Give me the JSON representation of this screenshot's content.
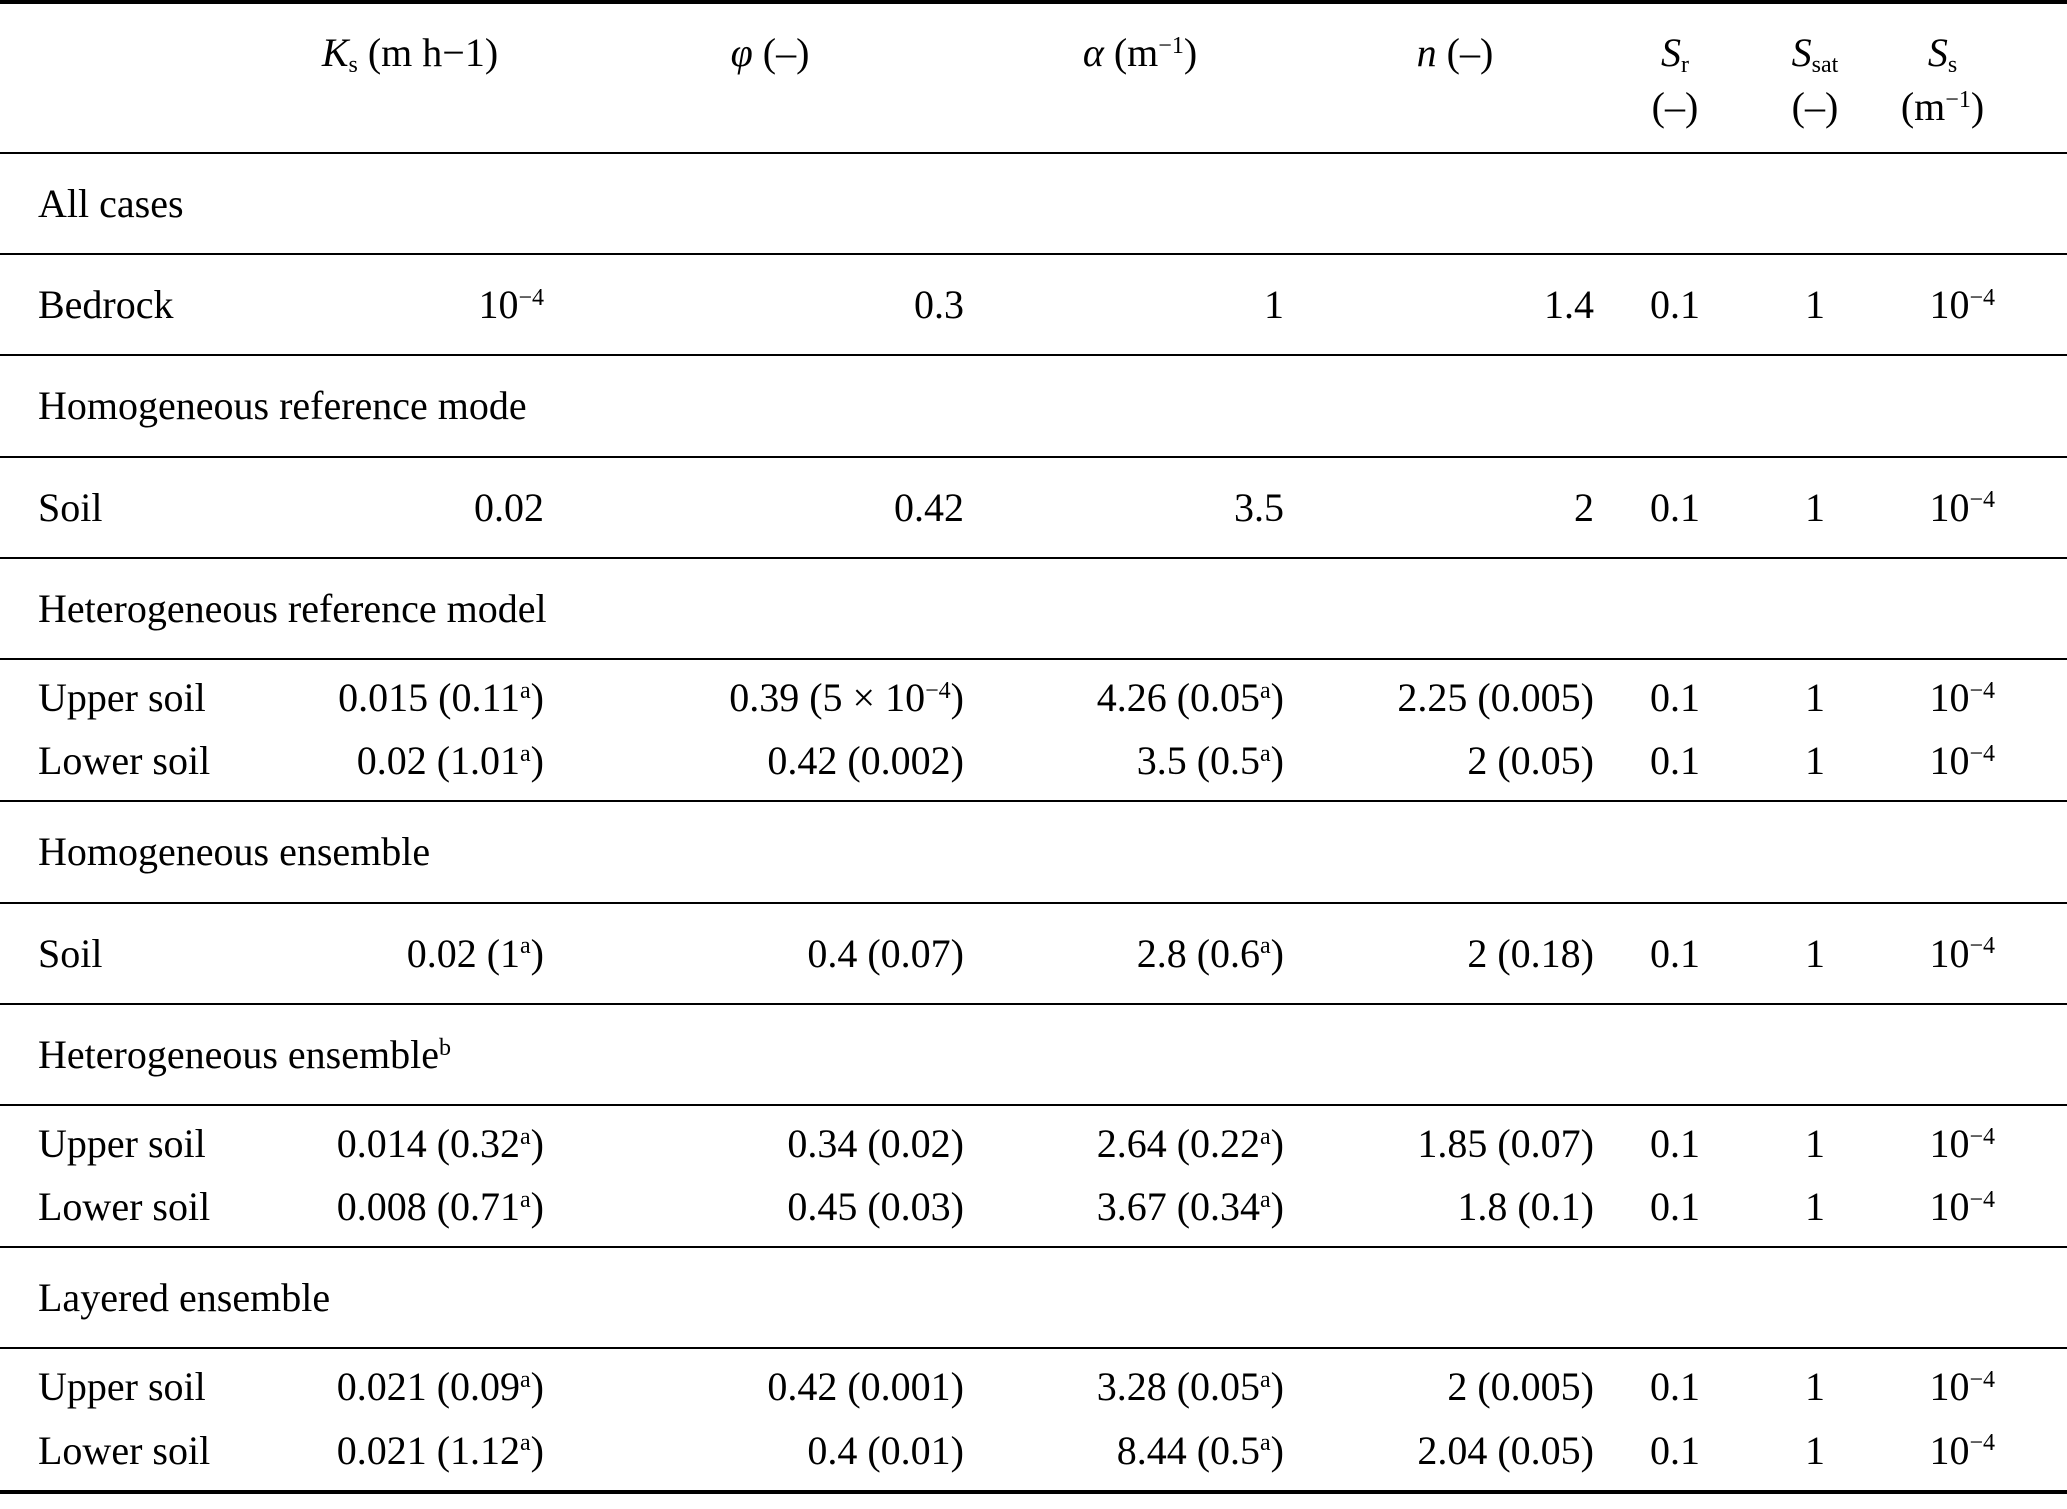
{
  "colors": {
    "background": "#ffffff",
    "text": "#000000",
    "rule": "#000000"
  },
  "table": {
    "columns": [
      {
        "id": "param",
        "header_line1": "",
        "header_line2": "",
        "align": "left"
      },
      {
        "id": "ks",
        "header_line1": "*K*_{s} (m h−1)",
        "header_line2": "",
        "align": "right"
      },
      {
        "id": "phi",
        "header_line1": "*φ* (–)",
        "header_line2": "",
        "align": "right"
      },
      {
        "id": "alpha",
        "header_line1": "*α* (m^{−1})",
        "header_line2": "",
        "align": "right"
      },
      {
        "id": "n",
        "header_line1": "*n* (–)",
        "header_line2": "",
        "align": "right"
      },
      {
        "id": "sr",
        "header_line1": "*S*_{r}",
        "header_line2": "(–)",
        "align": "center"
      },
      {
        "id": "ssat",
        "header_line1": "*S*_{sat}",
        "header_line2": "(–)",
        "align": "center"
      },
      {
        "id": "ss",
        "header_line1": "*S*_{s}",
        "header_line2": "(m^{−1})",
        "align": "right"
      }
    ],
    "sections": [
      {
        "title": "All cases",
        "rows": [
          {
            "label": "Bedrock",
            "values": [
              "10^{−4}",
              "0.3",
              "1",
              "1.4",
              "0.1",
              "1",
              "10^{−4}"
            ]
          }
        ]
      },
      {
        "title": "Homogeneous reference mode",
        "rows": [
          {
            "label": "Soil",
            "values": [
              "0.02",
              "0.42",
              "3.5",
              "2",
              "0.1",
              "1",
              "10^{−4}"
            ]
          }
        ]
      },
      {
        "title": "Heterogeneous reference model",
        "rows": [
          {
            "label": "Upper soil",
            "values": [
              "0.015 (0.11^{a})",
              "0.39 (5 × 10^{−4})",
              "4.26 (0.05^{a})",
              "2.25 (0.005)",
              "0.1",
              "1",
              "10^{−4}"
            ]
          },
          {
            "label": "Lower soil",
            "values": [
              "0.02 (1.01^{a})",
              "0.42 (0.002)",
              "3.5 (0.5^{a})",
              "2 (0.05)",
              "0.1",
              "1",
              "10^{−4}"
            ]
          }
        ]
      },
      {
        "title": "Homogeneous ensemble",
        "rows": [
          {
            "label": "Soil",
            "values": [
              "0.02 (1^{a})",
              "0.4 (0.07)",
              "2.8 (0.6^{a})",
              "2 (0.18)",
              "0.1",
              "1",
              "10^{−4}"
            ]
          }
        ]
      },
      {
        "title": "Heterogeneous ensemble^{b}",
        "rows": [
          {
            "label": "Upper soil",
            "values": [
              "0.014 (0.32^{a})",
              "0.34 (0.02)",
              "2.64 (0.22^{a})",
              "1.85 (0.07)",
              "0.1",
              "1",
              "10^{−4}"
            ]
          },
          {
            "label": "Lower soil",
            "values": [
              "0.008 (0.71^{a})",
              "0.45 (0.03)",
              "3.67 (0.34^{a})",
              "1.8 (0.1)",
              "0.1",
              "1",
              "10^{−4}"
            ]
          }
        ]
      },
      {
        "title": "Layered ensemble",
        "rows": [
          {
            "label": "Upper soil",
            "values": [
              "0.021 (0.09^{a})",
              "0.42 (0.001)",
              "3.28 (0.05^{a})",
              "2 (0.005)",
              "0.1",
              "1",
              "10^{−4}"
            ]
          },
          {
            "label": "Lower soil",
            "values": [
              "0.021 (1.12^{a})",
              "0.4 (0.01)",
              "8.44 (0.5^{a})",
              "2.04 (0.05)",
              "0.1",
              "1",
              "10^{−4}"
            ]
          }
        ]
      }
    ]
  }
}
